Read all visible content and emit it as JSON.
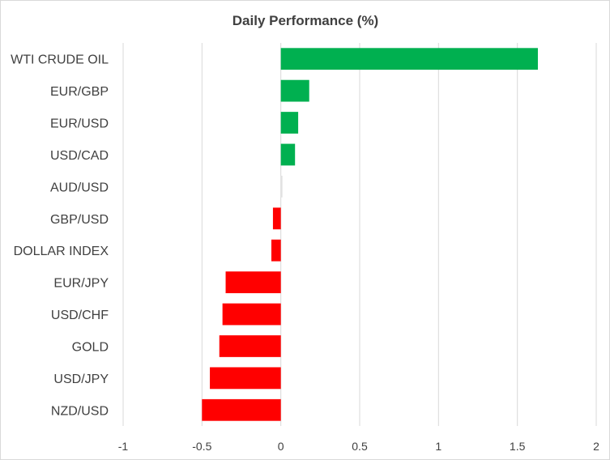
{
  "chart_data": {
    "type": "bar",
    "orientation": "horizontal",
    "title": "Daily Performance  (%)",
    "categories": [
      "WTI CRUDE OIL",
      "EUR/GBP",
      "EUR/USD",
      "USD/CAD",
      "AUD/USD",
      "GBP/USD",
      "DOLLAR INDEX",
      "EUR/JPY",
      "USD/CHF",
      "GOLD",
      "USD/JPY",
      "NZD/USD"
    ],
    "values": [
      1.63,
      0.18,
      0.11,
      0.09,
      0.01,
      -0.05,
      -0.06,
      -0.35,
      -0.37,
      -0.39,
      -0.45,
      -0.5
    ],
    "xlim": [
      -1,
      2
    ],
    "xticks": [
      -1,
      -0.5,
      0,
      0.5,
      1,
      1.5,
      2
    ],
    "xtick_labels": [
      "-1",
      "-0.5",
      "0",
      "0.5",
      "1",
      "1.5",
      "2"
    ],
    "xlabel": "",
    "ylabel": "",
    "grid": "vertical",
    "legend": "none",
    "colors": {
      "positive": "#00b050",
      "negative": "#ff0000",
      "neutral": "#e2e2e2",
      "grid": "#d9d9d9",
      "text": "#404040"
    }
  }
}
